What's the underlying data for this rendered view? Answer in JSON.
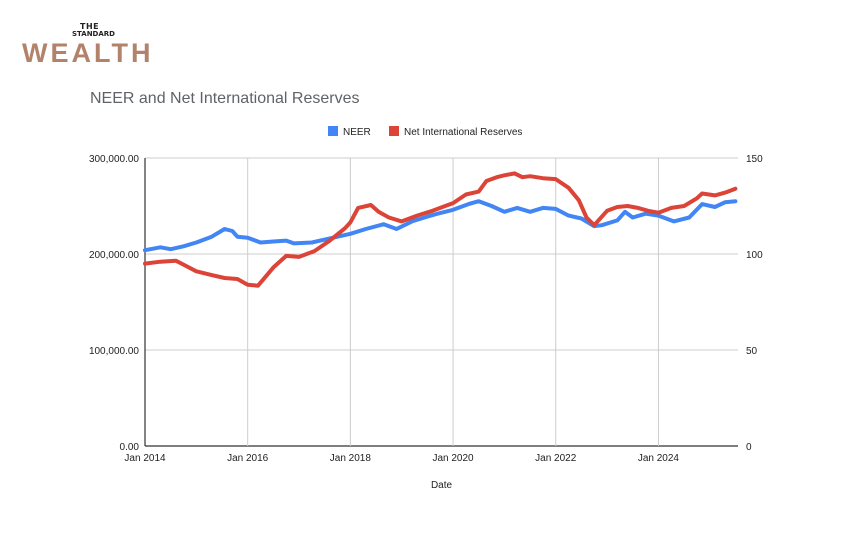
{
  "logo": {
    "line1": "THE",
    "line2": "STANDARD",
    "line3": "WEALTH"
  },
  "chart_data": {
    "type": "line",
    "title": "NEER and Net International Reserves",
    "xlabel": "Date",
    "ylabel_left": "",
    "ylabel_right": "",
    "legend_position": "top",
    "grid": true,
    "x_ticks": [
      "Jan 2014",
      "Jan 2016",
      "Jan 2018",
      "Jan 2020",
      "Jan 2022",
      "Jan 2024"
    ],
    "y_left_ticks": [
      "0.00",
      "100,000.00",
      "200,000.00",
      "300,000.00"
    ],
    "y_right_ticks": [
      "0",
      "50",
      "100",
      "150"
    ],
    "ylim_left": [
      0,
      300000
    ],
    "ylim_right": [
      0,
      150
    ],
    "xlim": [
      2014.0,
      2025.55
    ],
    "series": [
      {
        "name": "NEER",
        "axis": "right",
        "color": "#4285f4",
        "points": [
          [
            2014.0,
            102
          ],
          [
            2014.3,
            103.5
          ],
          [
            2014.5,
            102.5
          ],
          [
            2014.75,
            104
          ],
          [
            2015.0,
            106
          ],
          [
            2015.3,
            109
          ],
          [
            2015.55,
            113
          ],
          [
            2015.7,
            112
          ],
          [
            2015.8,
            109
          ],
          [
            2016.0,
            108.5
          ],
          [
            2016.25,
            106
          ],
          [
            2016.5,
            106.5
          ],
          [
            2016.75,
            107
          ],
          [
            2016.9,
            105.5
          ],
          [
            2017.25,
            106
          ],
          [
            2017.5,
            107.5
          ],
          [
            2017.75,
            109
          ],
          [
            2018.0,
            110.5
          ],
          [
            2018.3,
            113
          ],
          [
            2018.65,
            115.5
          ],
          [
            2018.9,
            113
          ],
          [
            2019.2,
            117
          ],
          [
            2019.5,
            119.5
          ],
          [
            2019.7,
            121
          ],
          [
            2020.0,
            123
          ],
          [
            2020.3,
            126
          ],
          [
            2020.5,
            127.5
          ],
          [
            2020.75,
            125
          ],
          [
            2021.0,
            122
          ],
          [
            2021.25,
            124
          ],
          [
            2021.5,
            122
          ],
          [
            2021.75,
            124
          ],
          [
            2022.0,
            123.5
          ],
          [
            2022.25,
            120
          ],
          [
            2022.5,
            118.5
          ],
          [
            2022.75,
            114.5
          ],
          [
            2022.9,
            115
          ],
          [
            2023.2,
            117.5
          ],
          [
            2023.35,
            122
          ],
          [
            2023.5,
            119
          ],
          [
            2023.75,
            121
          ],
          [
            2024.0,
            120
          ],
          [
            2024.3,
            117
          ],
          [
            2024.6,
            119
          ],
          [
            2024.85,
            126
          ],
          [
            2025.1,
            124.5
          ],
          [
            2025.3,
            127
          ],
          [
            2025.5,
            127.5
          ]
        ]
      },
      {
        "name": "Net International Reserves",
        "axis": "left",
        "color": "#db4437",
        "points": [
          [
            2014.0,
            190000
          ],
          [
            2014.3,
            192000
          ],
          [
            2014.6,
            193000
          ],
          [
            2014.75,
            189000
          ],
          [
            2015.0,
            182000
          ],
          [
            2015.3,
            178000
          ],
          [
            2015.55,
            175000
          ],
          [
            2015.8,
            174000
          ],
          [
            2016.0,
            168000
          ],
          [
            2016.2,
            167000
          ],
          [
            2016.5,
            186000
          ],
          [
            2016.75,
            198000
          ],
          [
            2017.0,
            197000
          ],
          [
            2017.3,
            203000
          ],
          [
            2017.6,
            214000
          ],
          [
            2017.9,
            227000
          ],
          [
            2018.0,
            233000
          ],
          [
            2018.15,
            248000
          ],
          [
            2018.4,
            251000
          ],
          [
            2018.55,
            244000
          ],
          [
            2018.75,
            238000
          ],
          [
            2019.0,
            234000
          ],
          [
            2019.3,
            240000
          ],
          [
            2019.6,
            245000
          ],
          [
            2019.9,
            251000
          ],
          [
            2020.0,
            253000
          ],
          [
            2020.25,
            262000
          ],
          [
            2020.5,
            265000
          ],
          [
            2020.65,
            276000
          ],
          [
            2020.85,
            280000
          ],
          [
            2021.0,
            282000
          ],
          [
            2021.2,
            284000
          ],
          [
            2021.35,
            280000
          ],
          [
            2021.5,
            281000
          ],
          [
            2021.75,
            279000
          ],
          [
            2022.0,
            278000
          ],
          [
            2022.25,
            269000
          ],
          [
            2022.45,
            256000
          ],
          [
            2022.6,
            238000
          ],
          [
            2022.75,
            230000
          ],
          [
            2023.0,
            245000
          ],
          [
            2023.2,
            249000
          ],
          [
            2023.4,
            250000
          ],
          [
            2023.6,
            248000
          ],
          [
            2023.8,
            245000
          ],
          [
            2024.0,
            243000
          ],
          [
            2024.25,
            248000
          ],
          [
            2024.5,
            250000
          ],
          [
            2024.75,
            258000
          ],
          [
            2024.85,
            263000
          ],
          [
            2025.1,
            261000
          ],
          [
            2025.3,
            264000
          ],
          [
            2025.5,
            268000
          ]
        ]
      }
    ]
  }
}
